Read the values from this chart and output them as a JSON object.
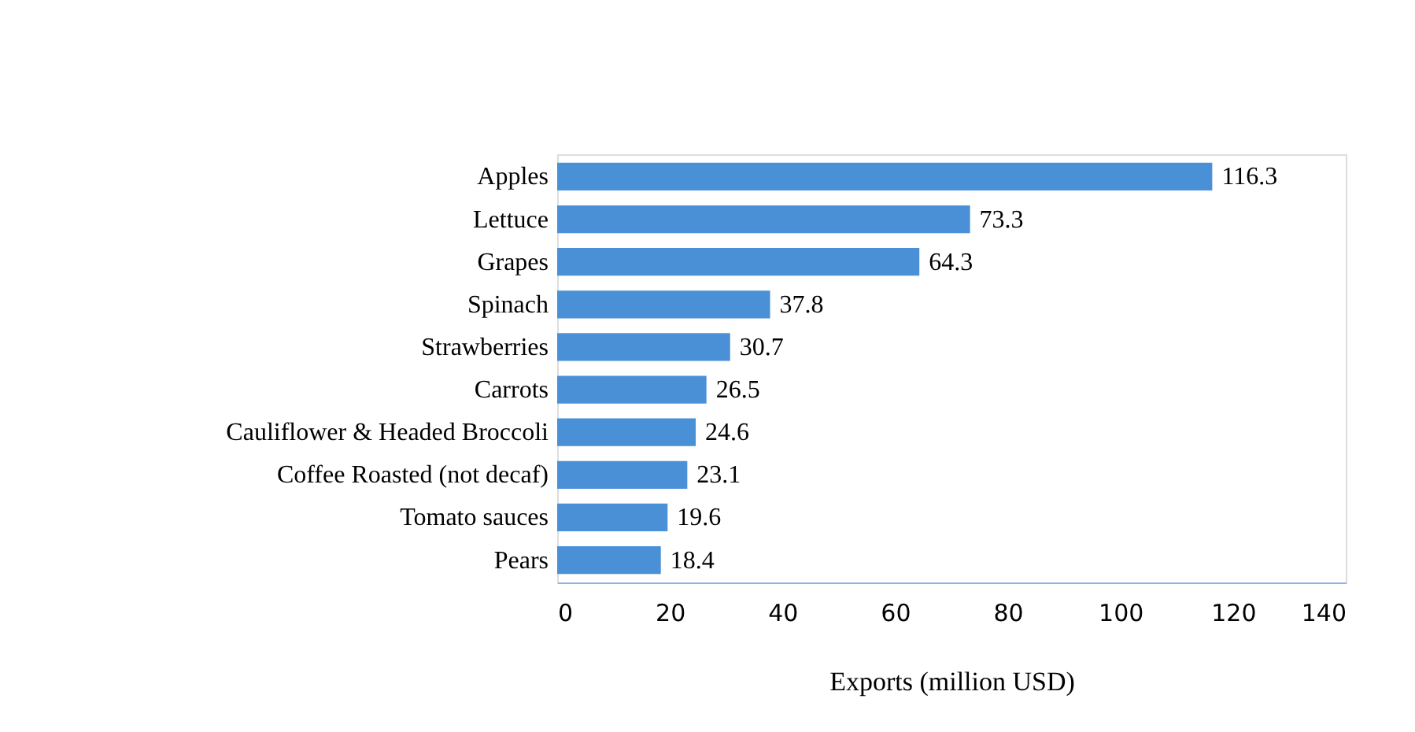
{
  "chart_data": {
    "type": "bar",
    "orientation": "horizontal",
    "xlabel": "Exports (million USD)",
    "categories": [
      "Apples",
      "Lettuce",
      "Grapes",
      "Spinach",
      "Strawberries",
      "Carrots",
      "Cauliflower & Headed Broccoli",
      "Coffee Roasted (not decaf)",
      "Tomato sauces",
      "Pears"
    ],
    "values": [
      116.3,
      73.3,
      64.3,
      37.8,
      30.7,
      26.5,
      24.6,
      23.1,
      19.6,
      18.4
    ],
    "color": "#4a90d6",
    "xlim": [
      0,
      140
    ],
    "xticks": [
      0,
      20,
      40,
      60,
      80,
      100,
      120,
      140
    ],
    "data_labels": true
  }
}
